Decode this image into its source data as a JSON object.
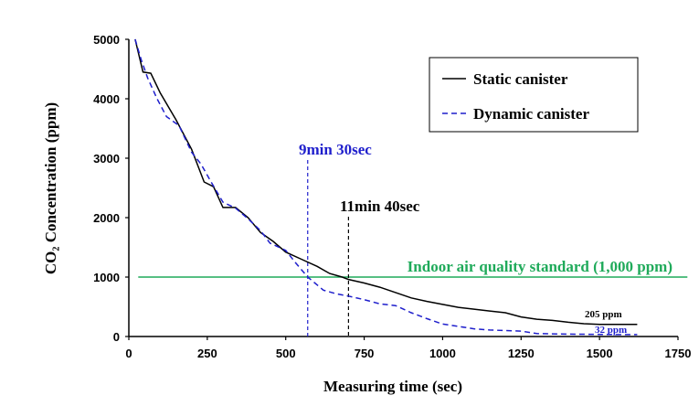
{
  "chart_data": {
    "type": "line",
    "title": "",
    "xlabel": "Measuring time (sec)",
    "ylabel": "CO₂ Concentration (ppm)",
    "xlim": [
      0,
      1750
    ],
    "ylim": [
      0,
      5000
    ],
    "x_ticks": [
      0,
      250,
      500,
      750,
      1000,
      1250,
      1500,
      1750
    ],
    "y_ticks": [
      0,
      1000,
      2000,
      3000,
      4000,
      5000
    ],
    "grid": false,
    "legend_position": "top-right",
    "series": [
      {
        "name": "Static canister",
        "color": "#000000",
        "dash": "solid",
        "points": [
          [
            20,
            5000
          ],
          [
            45,
            4450
          ],
          [
            70,
            4430
          ],
          [
            100,
            4100
          ],
          [
            150,
            3650
          ],
          [
            200,
            3150
          ],
          [
            240,
            2600
          ],
          [
            270,
            2520
          ],
          [
            300,
            2170
          ],
          [
            340,
            2170
          ],
          [
            380,
            2000
          ],
          [
            420,
            1750
          ],
          [
            460,
            1600
          ],
          [
            500,
            1420
          ],
          [
            550,
            1300
          ],
          [
            600,
            1180
          ],
          [
            640,
            1060
          ],
          [
            680,
            1000
          ],
          [
            700,
            960
          ],
          [
            750,
            900
          ],
          [
            800,
            830
          ],
          [
            850,
            740
          ],
          [
            900,
            650
          ],
          [
            950,
            590
          ],
          [
            1000,
            540
          ],
          [
            1050,
            490
          ],
          [
            1100,
            460
          ],
          [
            1150,
            430
          ],
          [
            1200,
            400
          ],
          [
            1250,
            330
          ],
          [
            1300,
            290
          ],
          [
            1350,
            270
          ],
          [
            1400,
            240
          ],
          [
            1450,
            215
          ],
          [
            1500,
            205
          ],
          [
            1550,
            205
          ],
          [
            1620,
            205
          ]
        ]
      },
      {
        "name": "Dynamic canister",
        "color": "#1f1fcc",
        "dash": "dashed",
        "points": [
          [
            20,
            5000
          ],
          [
            40,
            4650
          ],
          [
            60,
            4350
          ],
          [
            90,
            4000
          ],
          [
            120,
            3700
          ],
          [
            160,
            3550
          ],
          [
            200,
            3100
          ],
          [
            230,
            2900
          ],
          [
            260,
            2620
          ],
          [
            300,
            2260
          ],
          [
            340,
            2160
          ],
          [
            380,
            1980
          ],
          [
            420,
            1780
          ],
          [
            450,
            1570
          ],
          [
            500,
            1450
          ],
          [
            530,
            1250
          ],
          [
            570,
            1000
          ],
          [
            620,
            780
          ],
          [
            660,
            720
          ],
          [
            700,
            680
          ],
          [
            750,
            620
          ],
          [
            800,
            550
          ],
          [
            850,
            520
          ],
          [
            900,
            400
          ],
          [
            950,
            300
          ],
          [
            1000,
            210
          ],
          [
            1050,
            170
          ],
          [
            1100,
            130
          ],
          [
            1150,
            110
          ],
          [
            1200,
            100
          ],
          [
            1250,
            90
          ],
          [
            1300,
            50
          ],
          [
            1400,
            40
          ],
          [
            1500,
            35
          ],
          [
            1580,
            32
          ],
          [
            1620,
            32
          ]
        ]
      }
    ],
    "reference_line": {
      "label": "Indoor air quality standard (1,000 ppm)",
      "y": 1000,
      "x_from": 30,
      "x_to": 1780,
      "color": "#1faa5a"
    },
    "vertical_markers": [
      {
        "label": "9min 30sec",
        "x": 570,
        "color": "#1f1fcc"
      },
      {
        "label": "11min 40sec",
        "x": 700,
        "color": "#000000"
      }
    ],
    "end_labels": [
      {
        "label": "205 ppm",
        "x": 1620,
        "y": 205,
        "color": "#000000"
      },
      {
        "label": "32 ppm",
        "x": 1620,
        "y": 32,
        "color": "#1f1fcc"
      }
    ]
  }
}
